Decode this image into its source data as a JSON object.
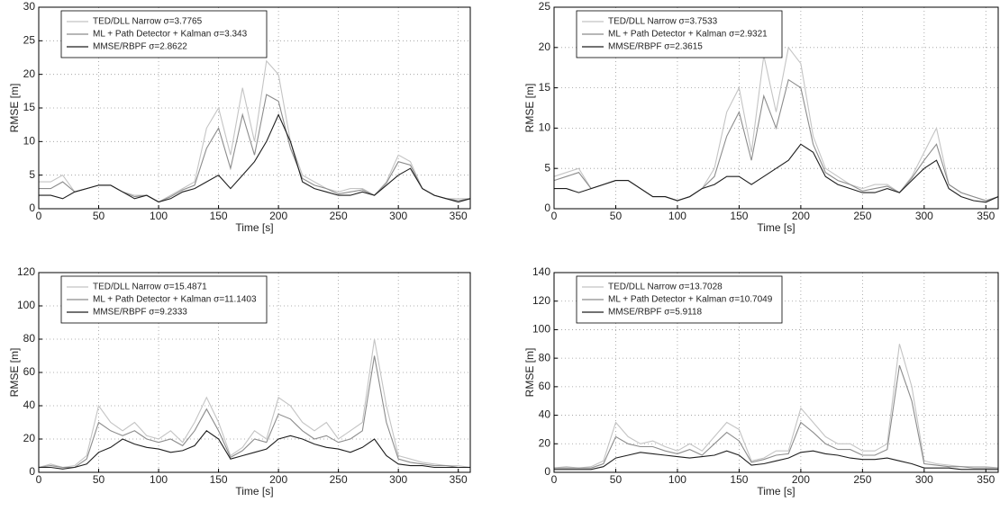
{
  "chart_data": [
    {
      "type": "line",
      "xlabel": "Time [s]",
      "ylabel": "RMSE [m]",
      "xlim": [
        0,
        360
      ],
      "ylim": [
        0,
        30
      ],
      "xticks": [
        0,
        50,
        100,
        150,
        200,
        250,
        300,
        350
      ],
      "yticks": [
        0,
        5,
        10,
        15,
        20,
        25,
        30
      ],
      "grid": true,
      "legend": "upper left",
      "x": [
        0,
        10,
        20,
        30,
        40,
        50,
        60,
        70,
        80,
        90,
        100,
        110,
        120,
        130,
        140,
        150,
        160,
        170,
        180,
        190,
        200,
        210,
        220,
        230,
        240,
        250,
        260,
        270,
        280,
        290,
        300,
        310,
        320,
        330,
        340,
        350,
        360
      ],
      "series": [
        {
          "name": "TED/DLL Narrow σ=3.7765",
          "color": "#c4c4c4",
          "values": [
            4,
            4,
            5,
            2.5,
            3,
            3.5,
            3.5,
            2.5,
            2,
            2,
            1,
            2,
            3,
            4,
            12,
            15,
            8,
            18,
            10,
            22,
            20,
            10,
            5,
            4,
            3,
            2.5,
            3,
            3,
            2,
            4,
            8,
            7,
            3,
            2,
            1.5,
            1.5,
            1.5
          ]
        },
        {
          "name": "ML + Path Detector + Kalman σ=3.343",
          "color": "#8c8c8c",
          "values": [
            3,
            3,
            4,
            2.5,
            3,
            3.5,
            3.5,
            2.5,
            1.8,
            2,
            1,
            1.8,
            2.8,
            3.5,
            9,
            12,
            6,
            14,
            8,
            17,
            16,
            9,
            4.5,
            3.5,
            3,
            2.2,
            2.5,
            2.8,
            2,
            3.8,
            7,
            6.5,
            3,
            2,
            1.5,
            1.2,
            1.5
          ]
        },
        {
          "name": "MMSE/RBPF σ=2.8622",
          "color": "#1e1e1e",
          "values": [
            2,
            2,
            1.5,
            2.5,
            3,
            3.5,
            3.5,
            2.5,
            1.5,
            2,
            1,
            1.5,
            2.5,
            3,
            4,
            5,
            3,
            5,
            7,
            10,
            14,
            10,
            4,
            3,
            2.5,
            2,
            2,
            2.5,
            2,
            3.5,
            5,
            6,
            3,
            2,
            1.5,
            1,
            1.5
          ]
        }
      ]
    },
    {
      "type": "line",
      "xlabel": "Time [s]",
      "ylabel": "RMSE [m]",
      "xlim": [
        0,
        360
      ],
      "ylim": [
        0,
        25
      ],
      "xticks": [
        0,
        50,
        100,
        150,
        200,
        250,
        300,
        350
      ],
      "yticks": [
        0,
        5,
        10,
        15,
        20,
        25
      ],
      "grid": true,
      "legend": "upper left",
      "x": [
        0,
        10,
        20,
        30,
        40,
        50,
        60,
        70,
        80,
        90,
        100,
        110,
        120,
        130,
        140,
        150,
        160,
        170,
        180,
        190,
        200,
        210,
        220,
        230,
        240,
        250,
        260,
        270,
        280,
        290,
        300,
        310,
        320,
        330,
        340,
        350,
        360
      ],
      "series": [
        {
          "name": "TED/DLL Narrow σ=3.7533",
          "color": "#c4c4c4",
          "values": [
            4,
            4.5,
            5,
            2.5,
            3,
            3.5,
            3.5,
            2.5,
            1.5,
            1.5,
            1,
            1.5,
            2.5,
            5,
            12,
            15,
            7,
            19,
            12,
            20,
            18,
            9,
            5,
            4,
            3,
            2.5,
            3,
            3,
            2,
            4,
            7,
            10,
            3,
            2,
            1.5,
            1,
            1.5
          ]
        },
        {
          "name": "ML + Path Detector + Kalman σ=2.9321",
          "color": "#8c8c8c",
          "values": [
            3.5,
            4,
            4.5,
            2.5,
            3,
            3.5,
            3.5,
            2.5,
            1.5,
            1.5,
            1,
            1.5,
            2.5,
            4,
            9,
            12,
            6,
            14,
            10,
            16,
            15,
            8,
            4.5,
            3.5,
            3,
            2.2,
            2.5,
            2.8,
            2,
            3.8,
            6,
            8,
            3,
            2,
            1.5,
            1,
            1.5
          ]
        },
        {
          "name": "MMSE/RBPF σ=2.3615",
          "color": "#1e1e1e",
          "values": [
            2.5,
            2.5,
            2,
            2.5,
            3,
            3.5,
            3.5,
            2.5,
            1.5,
            1.5,
            1,
            1.5,
            2.5,
            3,
            4,
            4,
            3,
            4,
            5,
            6,
            8,
            7,
            4,
            3,
            2.5,
            2,
            2,
            2.5,
            2,
            3.5,
            5,
            6,
            2.5,
            1.5,
            1,
            0.8,
            1.5
          ]
        }
      ]
    },
    {
      "type": "line",
      "xlabel": "Time [s]",
      "ylabel": "RMSE [m]",
      "xlim": [
        0,
        360
      ],
      "ylim": [
        0,
        120
      ],
      "xticks": [
        0,
        50,
        100,
        150,
        200,
        250,
        300,
        350
      ],
      "yticks": [
        0,
        20,
        40,
        60,
        80,
        100,
        120
      ],
      "grid": true,
      "legend": "upper left",
      "x": [
        0,
        10,
        20,
        30,
        40,
        50,
        60,
        70,
        80,
        90,
        100,
        110,
        120,
        130,
        140,
        150,
        160,
        170,
        180,
        190,
        200,
        210,
        220,
        230,
        240,
        250,
        260,
        270,
        280,
        290,
        300,
        310,
        320,
        330,
        340,
        350,
        360
      ],
      "series": [
        {
          "name": "TED/DLL Narrow σ=15.4871",
          "color": "#c4c4c4",
          "values": [
            3,
            5,
            3,
            4,
            10,
            40,
            30,
            25,
            30,
            22,
            20,
            25,
            18,
            30,
            45,
            30,
            10,
            15,
            25,
            20,
            45,
            40,
            30,
            25,
            30,
            20,
            25,
            30,
            80,
            40,
            10,
            8,
            6,
            5,
            4,
            4,
            3
          ]
        },
        {
          "name": "ML + Path Detector + Kalman σ=11.1403",
          "color": "#8c8c8c",
          "values": [
            3,
            4,
            3,
            3,
            8,
            30,
            25,
            22,
            25,
            20,
            18,
            20,
            16,
            25,
            38,
            25,
            9,
            13,
            20,
            18,
            35,
            32,
            25,
            20,
            22,
            18,
            20,
            25,
            70,
            30,
            8,
            6,
            5,
            4,
            4,
            3,
            3
          ]
        },
        {
          "name": "MMSE/RBPF σ=9.2333",
          "color": "#1e1e1e",
          "values": [
            3,
            3,
            2,
            3,
            5,
            12,
            15,
            20,
            17,
            15,
            14,
            12,
            13,
            16,
            25,
            20,
            8,
            10,
            12,
            14,
            20,
            22,
            20,
            17,
            15,
            14,
            12,
            15,
            20,
            10,
            5,
            4,
            4,
            3,
            3,
            3,
            3
          ]
        }
      ]
    },
    {
      "type": "line",
      "xlabel": "Time [s]",
      "ylabel": "RMSE [m]",
      "xlim": [
        0,
        360
      ],
      "ylim": [
        0,
        140
      ],
      "xticks": [
        0,
        50,
        100,
        150,
        200,
        250,
        300,
        350
      ],
      "yticks": [
        0,
        20,
        40,
        60,
        80,
        100,
        120,
        140
      ],
      "grid": true,
      "legend": "upper left",
      "x": [
        0,
        10,
        20,
        30,
        40,
        50,
        60,
        70,
        80,
        90,
        100,
        110,
        120,
        130,
        140,
        150,
        160,
        170,
        180,
        190,
        200,
        210,
        220,
        230,
        240,
        250,
        260,
        270,
        280,
        290,
        300,
        310,
        320,
        330,
        340,
        350,
        360
      ],
      "series": [
        {
          "name": "TED/DLL Narrow σ=13.7028",
          "color": "#c4c4c4",
          "values": [
            3,
            4,
            3,
            4,
            8,
            35,
            25,
            20,
            22,
            18,
            15,
            20,
            15,
            25,
            35,
            30,
            8,
            10,
            15,
            15,
            45,
            35,
            25,
            20,
            20,
            15,
            15,
            20,
            90,
            60,
            8,
            6,
            5,
            4,
            4,
            4,
            3
          ]
        },
        {
          "name": "ML + Path Detector + Kalman σ=10.7049",
          "color": "#8c8c8c",
          "values": [
            3,
            3,
            3,
            3,
            6,
            25,
            20,
            18,
            18,
            15,
            13,
            16,
            12,
            20,
            28,
            22,
            7,
            9,
            12,
            13,
            35,
            28,
            20,
            16,
            16,
            12,
            12,
            16,
            75,
            50,
            6,
            5,
            4,
            4,
            3,
            3,
            3
          ]
        },
        {
          "name": "MMSE/RBPF σ=5.9118",
          "color": "#1e1e1e",
          "values": [
            2,
            2,
            2,
            2,
            4,
            10,
            12,
            14,
            13,
            12,
            11,
            10,
            11,
            12,
            15,
            12,
            5,
            6,
            8,
            10,
            14,
            15,
            13,
            12,
            10,
            9,
            9,
            10,
            8,
            6,
            3,
            3,
            3,
            2,
            2,
            2,
            2
          ]
        }
      ]
    }
  ]
}
